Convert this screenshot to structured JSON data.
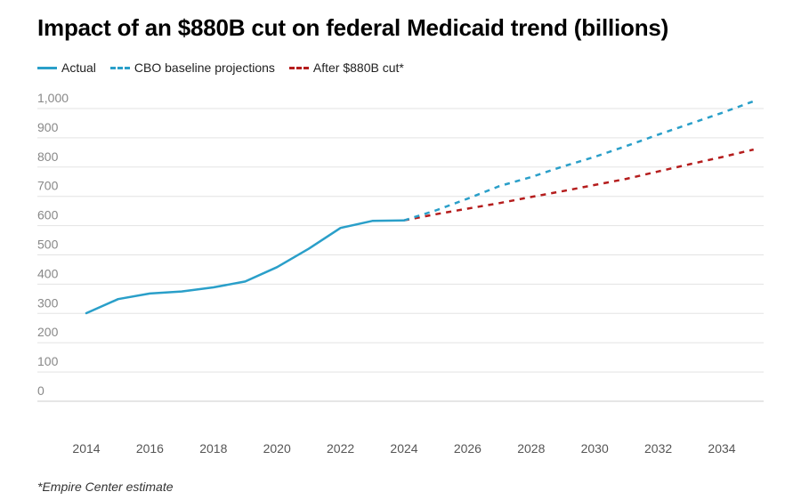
{
  "title": "Impact of an $880B cut on federal Medicaid trend (billions)",
  "legend": {
    "actual": "Actual",
    "baseline": "CBO baseline projections",
    "cut": "After $880B cut*"
  },
  "colors": {
    "actual": "#2a9fc9",
    "baseline": "#2a9fc9",
    "cut": "#b51d1d",
    "grid": "#e3e3e3",
    "axis_text": "#888888"
  },
  "footnote": "*Empire Center estimate",
  "chart_data": {
    "type": "line",
    "title": "Impact of an $880B cut on federal Medicaid trend (billions)",
    "xlabel": "",
    "ylabel": "",
    "xlim": [
      2014,
      2035
    ],
    "ylim": [
      0,
      1000
    ],
    "grid": true,
    "legend_position": "top-left",
    "y_ticks": [
      0,
      100,
      200,
      300,
      400,
      500,
      600,
      700,
      800,
      900,
      1000
    ],
    "y_tick_labels": [
      "0",
      "100",
      "200",
      "300",
      "400",
      "500",
      "600",
      "700",
      "800",
      "900",
      "1,000"
    ],
    "x_ticks": [
      2014,
      2016,
      2018,
      2020,
      2022,
      2024,
      2026,
      2028,
      2030,
      2032,
      2034
    ],
    "x_tick_labels": [
      "2014",
      "2016",
      "2018",
      "2020",
      "2022",
      "2024",
      "2026",
      "2028",
      "2030",
      "2032",
      "2034"
    ],
    "series": [
      {
        "name": "Actual",
        "style": "solid",
        "x": [
          2014,
          2015,
          2016,
          2017,
          2018,
          2019,
          2020,
          2021,
          2022,
          2023,
          2024
        ],
        "values": [
          301,
          349,
          368,
          375,
          389,
          409,
          458,
          521,
          592,
          616,
          618
        ]
      },
      {
        "name": "CBO baseline projections",
        "style": "dashed",
        "x": [
          2024,
          2025,
          2026,
          2027,
          2028,
          2029,
          2030,
          2031,
          2032,
          2033,
          2034,
          2035
        ],
        "values": [
          618,
          652,
          692,
          735,
          766,
          802,
          835,
          872,
          911,
          948,
          985,
          1025
        ]
      },
      {
        "name": "After $880B cut*",
        "style": "dashed",
        "x": [
          2024,
          2025,
          2026,
          2027,
          2028,
          2029,
          2030,
          2031,
          2032,
          2033,
          2034,
          2035
        ],
        "values": [
          618,
          639,
          658,
          677,
          698,
          718,
          739,
          760,
          785,
          810,
          834,
          860
        ]
      }
    ]
  }
}
